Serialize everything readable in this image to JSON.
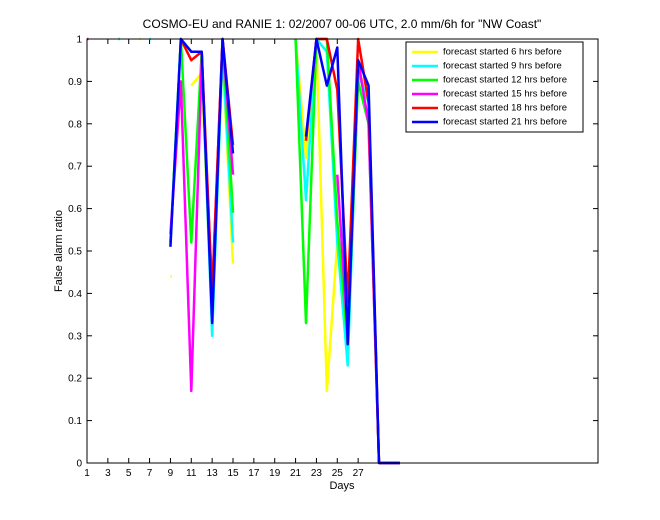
{
  "chart_data": {
    "type": "line",
    "title": "COSMO-EU and RANIE 1: 02/2007 00-06 UTC, 2.0 mm/6h for \"NW Coast\"",
    "xlabel": "Days",
    "ylabel": "False alarm ratio",
    "x": [
      1,
      2,
      3,
      4,
      5,
      6,
      7,
      8,
      9,
      10,
      11,
      12,
      13,
      14,
      15,
      16,
      17,
      18,
      19,
      20,
      21,
      22,
      23,
      24,
      25,
      26,
      27,
      28,
      29,
      30,
      31
    ],
    "xlim": [
      1,
      50
    ],
    "xticks": [
      1,
      3,
      5,
      7,
      9,
      11,
      13,
      15,
      17,
      19,
      21,
      23,
      25,
      27
    ],
    "ylim": [
      0,
      1
    ],
    "yticks": [
      0,
      0.1,
      0.2,
      0.3,
      0.4,
      0.5,
      0.6,
      0.7,
      0.8,
      0.9,
      1
    ],
    "legend_position": "upper right",
    "series": [
      {
        "name": "forecast started 6 hrs before",
        "color": "#ffff00",
        "values": [
          1,
          null,
          null,
          1,
          null,
          1,
          null,
          null,
          0.44,
          null,
          0.89,
          0.92,
          0.33,
          0.96,
          0.47,
          null,
          null,
          null,
          null,
          null,
          1,
          0.72,
          1,
          0.17,
          0.52,
          0.28,
          0.92,
          0.88,
          0,
          0,
          0
        ]
      },
      {
        "name": "forecast started 9 hrs before",
        "color": "#00ffff",
        "values": [
          null,
          null,
          null,
          1,
          null,
          null,
          1,
          null,
          0.52,
          1,
          0.97,
          0.97,
          0.3,
          0.97,
          0.52,
          null,
          null,
          null,
          null,
          null,
          1,
          0.62,
          1,
          0.97,
          0.52,
          0.23,
          0.92,
          0.85,
          0,
          0,
          0
        ]
      },
      {
        "name": "forecast started 12 hrs before",
        "color": "#00ff00",
        "values": [
          null,
          null,
          null,
          null,
          null,
          null,
          null,
          null,
          0.52,
          1,
          0.52,
          0.97,
          0.35,
          1,
          0.59,
          null,
          null,
          null,
          null,
          null,
          1,
          0.33,
          1,
          1,
          0.57,
          0.28,
          0.9,
          0.8,
          0,
          0,
          0
        ]
      },
      {
        "name": "forecast started 15 hrs before",
        "color": "#ff00ff",
        "values": [
          1,
          null,
          null,
          null,
          null,
          null,
          null,
          null,
          0.54,
          0.9,
          0.17,
          0.95,
          0.4,
          1,
          0.68,
          null,
          null,
          null,
          null,
          null,
          null,
          null,
          null,
          null,
          0.68,
          0.3,
          0.95,
          0.8,
          0,
          0,
          0
        ]
      },
      {
        "name": "forecast started 18 hrs before",
        "color": "#ff0000",
        "values": [
          null,
          null,
          null,
          null,
          null,
          null,
          null,
          null,
          null,
          1,
          0.95,
          0.97,
          0.4,
          1,
          0.75,
          null,
          null,
          null,
          null,
          null,
          null,
          0.76,
          1,
          1,
          0.88,
          0.38,
          1,
          0.85,
          0,
          0,
          0
        ]
      },
      {
        "name": "forecast started 21 hrs before",
        "color": "#0000ff",
        "values": [
          null,
          null,
          null,
          null,
          null,
          null,
          null,
          null,
          0.51,
          1,
          0.97,
          0.97,
          0.33,
          1,
          0.73,
          null,
          null,
          null,
          null,
          null,
          null,
          0.77,
          1,
          0.89,
          0.98,
          0.28,
          0.95,
          0.89,
          0,
          0,
          0
        ]
      }
    ]
  }
}
